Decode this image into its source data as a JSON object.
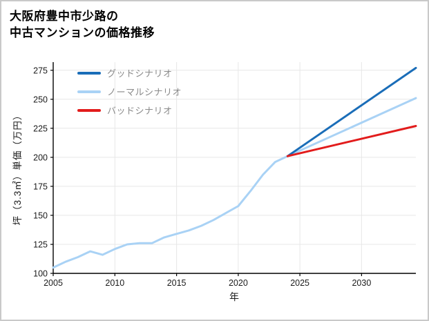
{
  "chart_data": {
    "type": "line",
    "title": "大阪府豊中市少路の中古マンションの価格推移",
    "title_line1": "大阪府豊中市少路の",
    "title_line2": "中古マンションの価格推移",
    "xlabel": "年",
    "ylabel": "坪（3.3㎡）単価（万円）",
    "xlim": [
      2005,
      2034.4
    ],
    "ylim": [
      100,
      282
    ],
    "x_ticks": [
      2005,
      2010,
      2015,
      2020,
      2025,
      2030
    ],
    "y_ticks": [
      100,
      125,
      150,
      175,
      200,
      225,
      250,
      275
    ],
    "grid": true,
    "legend_position": "upper-left",
    "series": [
      {
        "name": "グッドシナリオ",
        "color": "#1a6db8",
        "x": [
          2024,
          2034.4
        ],
        "values": [
          201,
          277
        ]
      },
      {
        "name": "ノーマルシナリオ",
        "color": "#a9d2f5",
        "x": [
          2005,
          2006,
          2007,
          2008,
          2009,
          2010,
          2011,
          2012,
          2013,
          2014,
          2015,
          2016,
          2017,
          2018,
          2019,
          2020,
          2021,
          2022,
          2023,
          2024,
          2034.4
        ],
        "values": [
          105,
          110,
          114,
          119,
          116,
          121,
          125,
          126,
          126,
          131,
          134,
          137,
          141,
          146,
          152,
          158,
          171,
          185,
          196,
          201,
          251
        ]
      },
      {
        "name": "バッドシナリオ",
        "color": "#e21c1c",
        "x": [
          2024,
          2034.4
        ],
        "values": [
          201,
          227
        ]
      }
    ]
  }
}
